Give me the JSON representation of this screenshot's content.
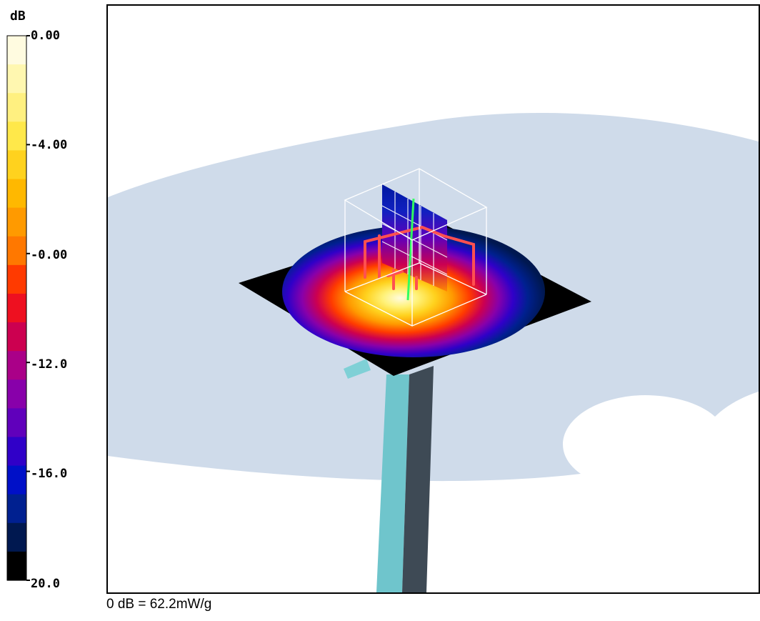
{
  "legend": {
    "unit": "dB",
    "ticks": [
      "0.00",
      "-4.00",
      "-0.00",
      "-12.0",
      "-16.0",
      "20.0"
    ],
    "bands": [
      "#fffbe0",
      "#fff7b0",
      "#fff080",
      "#ffe84a",
      "#ffd21e",
      "#ffb800",
      "#ff9a00",
      "#ff7800",
      "#ff3a00",
      "#ee1020",
      "#cc0050",
      "#aa0088",
      "#8800aa",
      "#6000bb",
      "#3000c8",
      "#0010c8",
      "#002090",
      "#001850",
      "#000000"
    ]
  },
  "caption": "0 dB = 62.2mW/g",
  "scene": {
    "colors": {
      "phantom": "#cfdbea",
      "plate": "#000000",
      "pole_light": "#6fc5cc",
      "pole_dark": "#3e4a55",
      "grid_wire": "#ffffff",
      "antenna_trace": "#ff5050",
      "feed": "#30ff60"
    },
    "icons": [
      "sar-color-scale",
      "3d-measurement-scene"
    ]
  }
}
